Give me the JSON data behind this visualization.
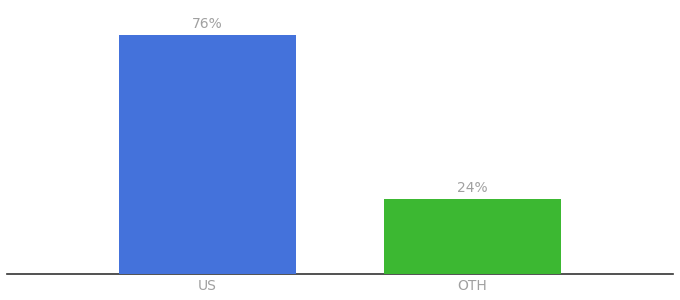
{
  "categories": [
    "US",
    "OTH"
  ],
  "values": [
    76,
    24
  ],
  "bar_colors": [
    "#4472db",
    "#3cb832"
  ],
  "label_format": [
    "76%",
    "24%"
  ],
  "background_color": "#ffffff",
  "text_color": "#a0a0a0",
  "label_fontsize": 10,
  "tick_fontsize": 10,
  "ylim": [
    0,
    85
  ],
  "bar_width": 0.22,
  "x_positions": [
    0.3,
    0.63
  ],
  "xlim": [
    0.05,
    0.88
  ]
}
